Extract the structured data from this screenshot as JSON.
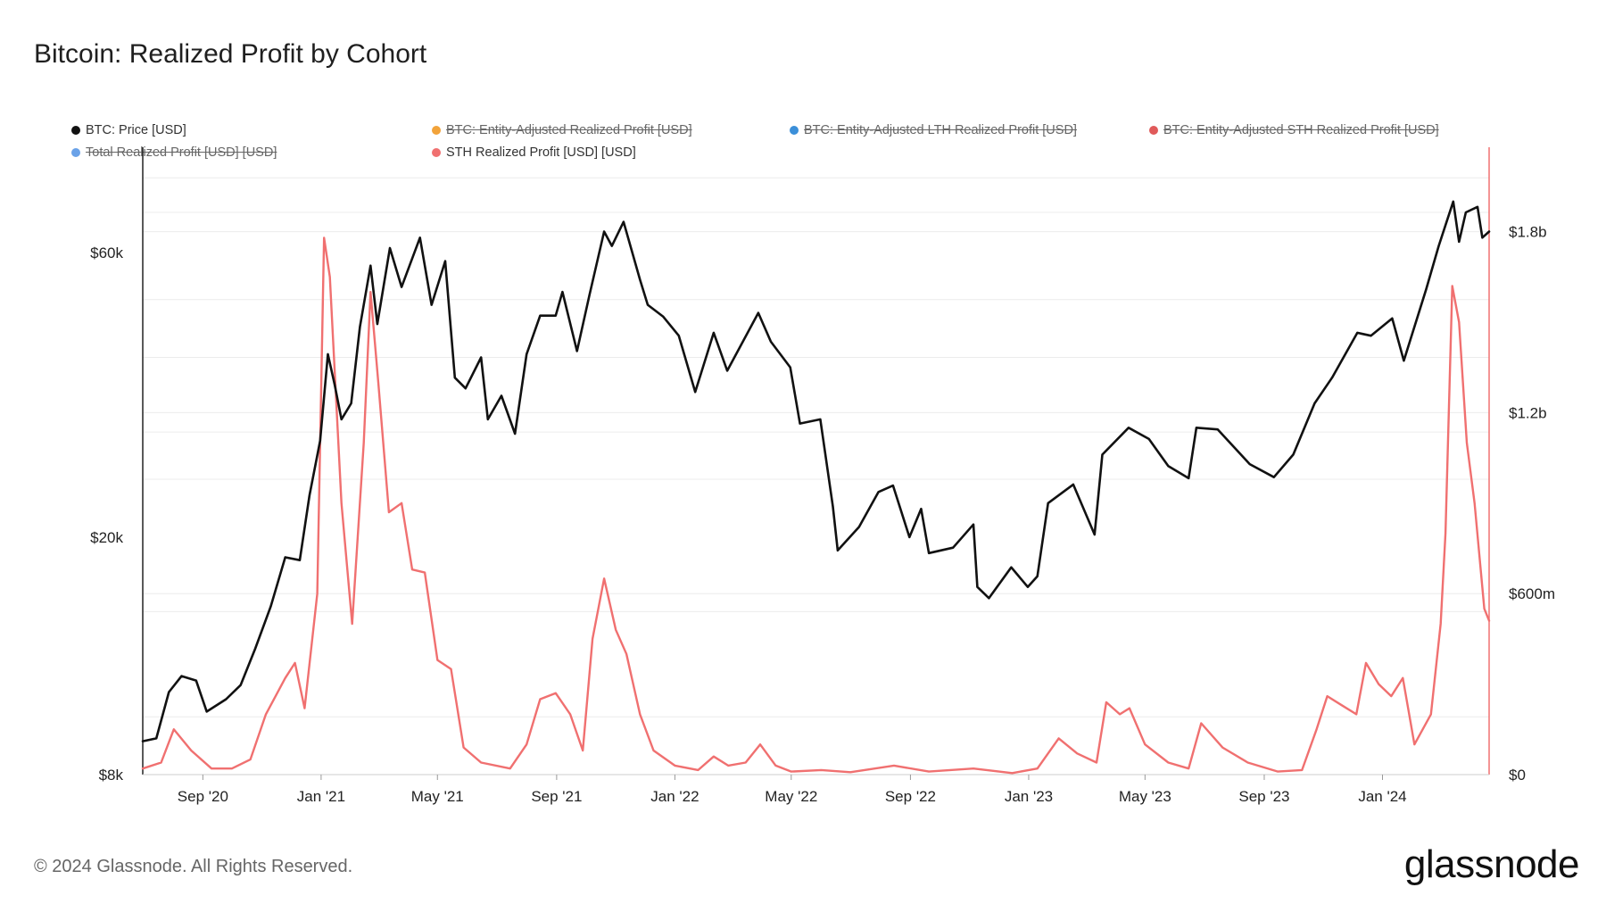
{
  "title": "Bitcoin: Realized Profit by Cohort",
  "footer": "© 2024 Glassnode. All Rights Reserved.",
  "brand": "glassnode",
  "legend": [
    {
      "label": "BTC: Price [USD]",
      "color": "#111111",
      "active": true
    },
    {
      "label": "BTC: Entity-Adjusted Realized Profit [USD]",
      "color": "#f2a33a",
      "active": false
    },
    {
      "label": "BTC: Entity-Adjusted LTH Realized Profit [USD]",
      "color": "#3b8fd9",
      "active": false
    },
    {
      "label": "BTC: Entity-Adjusted STH Realized Profit [USD]",
      "color": "#e05a5a",
      "active": false
    },
    {
      "label": "Total Realized Profit [USD] [USD]",
      "color": "#6aa2e8",
      "active": false
    },
    {
      "label": "STH Realized Profit [USD] [USD]",
      "color": "#f07070",
      "active": true
    }
  ],
  "chart_data": {
    "type": "line",
    "x_ticks": [
      "Sep '20",
      "Jan '21",
      "May '21",
      "Sep '21",
      "Jan '22",
      "May '22",
      "Sep '22",
      "Jan '23",
      "May '23",
      "Sep '23",
      "Jan '24"
    ],
    "x_range": [
      "2020-07-01",
      "2024-04-20"
    ],
    "left_axis": {
      "label": "",
      "scale": "log",
      "ticks": [
        "$8k",
        "$20k",
        "$60k"
      ],
      "tick_values": [
        8000,
        20000,
        60000
      ],
      "range": [
        8000,
        90000
      ]
    },
    "right_axis": {
      "label": "",
      "scale": "linear",
      "ticks": [
        "$0",
        "$600m",
        "$1.2b",
        "$1.8b"
      ],
      "tick_values": [
        0,
        600000000,
        1200000000,
        1800000000
      ],
      "range": [
        0,
        2080000000
      ]
    },
    "series": [
      {
        "name": "BTC: Price [USD]",
        "axis": "left",
        "color": "#111111",
        "points": [
          [
            "2020-07-01",
            9100
          ],
          [
            "2020-07-15",
            9200
          ],
          [
            "2020-07-28",
            11000
          ],
          [
            "2020-08-10",
            11700
          ],
          [
            "2020-08-25",
            11500
          ],
          [
            "2020-09-05",
            10200
          ],
          [
            "2020-09-25",
            10700
          ],
          [
            "2020-10-10",
            11300
          ],
          [
            "2020-10-25",
            13000
          ],
          [
            "2020-11-10",
            15300
          ],
          [
            "2020-11-25",
            18500
          ],
          [
            "2020-12-10",
            18300
          ],
          [
            "2020-12-20",
            23500
          ],
          [
            "2020-12-31",
            29000
          ],
          [
            "2021-01-08",
            40500
          ],
          [
            "2021-01-15",
            36000
          ],
          [
            "2021-01-22",
            31500
          ],
          [
            "2021-02-01",
            33500
          ],
          [
            "2021-02-10",
            45000
          ],
          [
            "2021-02-21",
            57000
          ],
          [
            "2021-02-28",
            45500
          ],
          [
            "2021-03-13",
            61000
          ],
          [
            "2021-03-25",
            52500
          ],
          [
            "2021-04-13",
            63500
          ],
          [
            "2021-04-25",
            49000
          ],
          [
            "2021-05-09",
            58000
          ],
          [
            "2021-05-19",
            37000
          ],
          [
            "2021-05-30",
            35500
          ],
          [
            "2021-06-15",
            40000
          ],
          [
            "2021-06-22",
            31500
          ],
          [
            "2021-07-06",
            34500
          ],
          [
            "2021-07-20",
            29800
          ],
          [
            "2021-08-01",
            40500
          ],
          [
            "2021-08-15",
            47000
          ],
          [
            "2021-08-31",
            47000
          ],
          [
            "2021-09-07",
            51500
          ],
          [
            "2021-09-22",
            41000
          ],
          [
            "2021-10-05",
            51000
          ],
          [
            "2021-10-20",
            65000
          ],
          [
            "2021-10-28",
            61500
          ],
          [
            "2021-11-09",
            67500
          ],
          [
            "2021-11-26",
            54000
          ],
          [
            "2021-12-04",
            49000
          ],
          [
            "2021-12-20",
            46800
          ],
          [
            "2022-01-05",
            43500
          ],
          [
            "2022-01-22",
            35000
          ],
          [
            "2022-02-10",
            44000
          ],
          [
            "2022-02-24",
            38000
          ],
          [
            "2022-03-28",
            47500
          ],
          [
            "2022-04-10",
            42500
          ],
          [
            "2022-04-30",
            38500
          ],
          [
            "2022-05-10",
            31000
          ],
          [
            "2022-05-31",
            31500
          ],
          [
            "2022-06-13",
            22500
          ],
          [
            "2022-06-18",
            19000
          ],
          [
            "2022-07-10",
            20800
          ],
          [
            "2022-07-30",
            23800
          ],
          [
            "2022-08-14",
            24400
          ],
          [
            "2022-08-31",
            20000
          ],
          [
            "2022-09-12",
            22300
          ],
          [
            "2022-09-20",
            18800
          ],
          [
            "2022-10-15",
            19200
          ],
          [
            "2022-11-05",
            21000
          ],
          [
            "2022-11-09",
            16500
          ],
          [
            "2022-11-21",
            15800
          ],
          [
            "2022-12-14",
            17800
          ],
          [
            "2022-12-31",
            16500
          ],
          [
            "2023-01-10",
            17200
          ],
          [
            "2023-01-21",
            22800
          ],
          [
            "2023-02-16",
            24500
          ],
          [
            "2023-03-10",
            20200
          ],
          [
            "2023-03-18",
            27500
          ],
          [
            "2023-04-14",
            30500
          ],
          [
            "2023-05-05",
            29200
          ],
          [
            "2023-05-25",
            26300
          ],
          [
            "2023-06-15",
            25100
          ],
          [
            "2023-06-23",
            30500
          ],
          [
            "2023-07-15",
            30300
          ],
          [
            "2023-08-17",
            26500
          ],
          [
            "2023-09-11",
            25200
          ],
          [
            "2023-10-01",
            27500
          ],
          [
            "2023-10-23",
            33500
          ],
          [
            "2023-11-10",
            37000
          ],
          [
            "2023-12-06",
            44000
          ],
          [
            "2023-12-20",
            43500
          ],
          [
            "2024-01-11",
            46500
          ],
          [
            "2024-01-23",
            39500
          ],
          [
            "2024-02-15",
            52000
          ],
          [
            "2024-02-28",
            61500
          ],
          [
            "2024-03-14",
            73000
          ],
          [
            "2024-03-20",
            62500
          ],
          [
            "2024-03-27",
            70000
          ],
          [
            "2024-04-08",
            71500
          ],
          [
            "2024-04-13",
            63500
          ],
          [
            "2024-04-20",
            65000
          ]
        ]
      },
      {
        "name": "STH Realized Profit [USD] [USD]",
        "axis": "right",
        "color": "#f07070",
        "points": [
          [
            "2020-07-01",
            20000000
          ],
          [
            "2020-07-20",
            40000000
          ],
          [
            "2020-08-02",
            150000000
          ],
          [
            "2020-08-20",
            80000000
          ],
          [
            "2020-09-10",
            20000000
          ],
          [
            "2020-10-01",
            20000000
          ],
          [
            "2020-10-20",
            50000000
          ],
          [
            "2020-11-05",
            200000000
          ],
          [
            "2020-11-25",
            320000000
          ],
          [
            "2020-12-05",
            370000000
          ],
          [
            "2020-12-15",
            220000000
          ],
          [
            "2020-12-28",
            600000000
          ],
          [
            "2021-01-04",
            1780000000
          ],
          [
            "2021-01-10",
            1650000000
          ],
          [
            "2021-01-22",
            900000000
          ],
          [
            "2021-02-02",
            500000000
          ],
          [
            "2021-02-14",
            1100000000
          ],
          [
            "2021-02-21",
            1600000000
          ],
          [
            "2021-03-01",
            1300000000
          ],
          [
            "2021-03-12",
            870000000
          ],
          [
            "2021-03-25",
            900000000
          ],
          [
            "2021-04-05",
            680000000
          ],
          [
            "2021-04-18",
            670000000
          ],
          [
            "2021-05-01",
            380000000
          ],
          [
            "2021-05-15",
            350000000
          ],
          [
            "2021-05-28",
            90000000
          ],
          [
            "2021-06-15",
            40000000
          ],
          [
            "2021-07-15",
            20000000
          ],
          [
            "2021-08-01",
            100000000
          ],
          [
            "2021-08-15",
            250000000
          ],
          [
            "2021-08-31",
            270000000
          ],
          [
            "2021-09-15",
            200000000
          ],
          [
            "2021-09-28",
            80000000
          ],
          [
            "2021-10-08",
            450000000
          ],
          [
            "2021-10-20",
            650000000
          ],
          [
            "2021-11-01",
            480000000
          ],
          [
            "2021-11-12",
            400000000
          ],
          [
            "2021-11-26",
            200000000
          ],
          [
            "2021-12-10",
            80000000
          ],
          [
            "2022-01-01",
            30000000
          ],
          [
            "2022-01-25",
            15000000
          ],
          [
            "2022-02-10",
            60000000
          ],
          [
            "2022-02-25",
            30000000
          ],
          [
            "2022-03-15",
            40000000
          ],
          [
            "2022-03-30",
            100000000
          ],
          [
            "2022-04-15",
            30000000
          ],
          [
            "2022-05-01",
            10000000
          ],
          [
            "2022-06-01",
            15000000
          ],
          [
            "2022-07-01",
            8000000
          ],
          [
            "2022-08-15",
            30000000
          ],
          [
            "2022-09-20",
            10000000
          ],
          [
            "2022-11-05",
            20000000
          ],
          [
            "2022-12-15",
            5000000
          ],
          [
            "2023-01-10",
            20000000
          ],
          [
            "2023-02-01",
            120000000
          ],
          [
            "2023-02-20",
            70000000
          ],
          [
            "2023-03-12",
            40000000
          ],
          [
            "2023-03-22",
            240000000
          ],
          [
            "2023-04-05",
            200000000
          ],
          [
            "2023-04-15",
            220000000
          ],
          [
            "2023-05-01",
            100000000
          ],
          [
            "2023-05-25",
            40000000
          ],
          [
            "2023-06-15",
            20000000
          ],
          [
            "2023-06-28",
            170000000
          ],
          [
            "2023-07-20",
            90000000
          ],
          [
            "2023-08-15",
            40000000
          ],
          [
            "2023-09-15",
            10000000
          ],
          [
            "2023-10-10",
            15000000
          ],
          [
            "2023-10-25",
            150000000
          ],
          [
            "2023-11-05",
            260000000
          ],
          [
            "2023-11-20",
            230000000
          ],
          [
            "2023-12-05",
            200000000
          ],
          [
            "2023-12-15",
            370000000
          ],
          [
            "2023-12-28",
            300000000
          ],
          [
            "2024-01-10",
            260000000
          ],
          [
            "2024-01-22",
            320000000
          ],
          [
            "2024-02-03",
            100000000
          ],
          [
            "2024-02-20",
            200000000
          ],
          [
            "2024-03-01",
            500000000
          ],
          [
            "2024-03-06",
            800000000
          ],
          [
            "2024-03-13",
            1620000000
          ],
          [
            "2024-03-20",
            1500000000
          ],
          [
            "2024-03-28",
            1100000000
          ],
          [
            "2024-04-05",
            900000000
          ],
          [
            "2024-04-15",
            550000000
          ],
          [
            "2024-04-20",
            510000000
          ]
        ]
      }
    ],
    "grid": true,
    "legend_position": "top"
  }
}
